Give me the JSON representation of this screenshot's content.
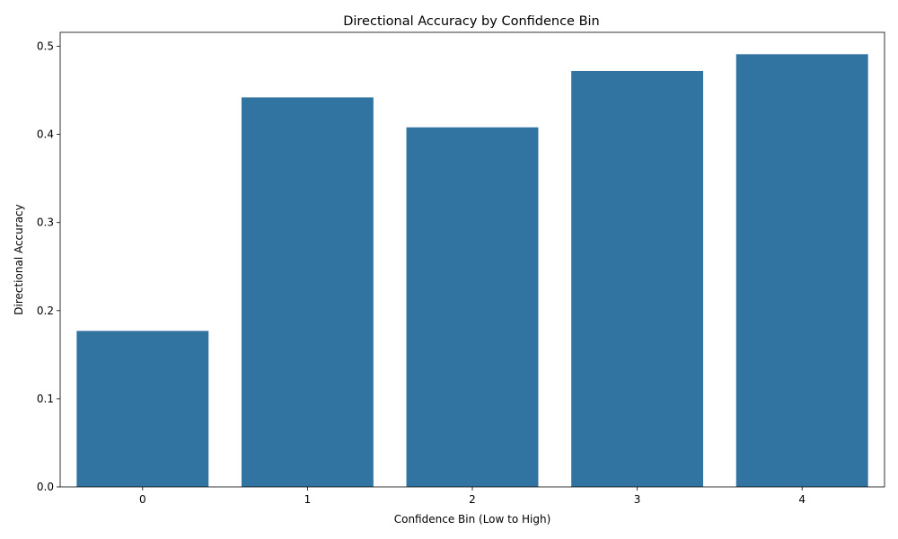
{
  "chart_data": {
    "type": "bar",
    "title": "Directional Accuracy by Confidence Bin",
    "xlabel": "Confidence Bin (Low to High)",
    "ylabel": "Directional Accuracy",
    "categories": [
      "0",
      "1",
      "2",
      "3",
      "4"
    ],
    "values": [
      0.177,
      0.442,
      0.408,
      0.472,
      0.491
    ],
    "ylim": [
      0,
      0.5158
    ],
    "yticks": [
      0.0,
      0.1,
      0.2,
      0.3,
      0.4,
      0.5
    ],
    "ytick_labels": [
      "0.0",
      "0.1",
      "0.2",
      "0.3",
      "0.4",
      "0.5"
    ],
    "bar_color": "#3274a1",
    "grid": false,
    "legend": "none"
  }
}
